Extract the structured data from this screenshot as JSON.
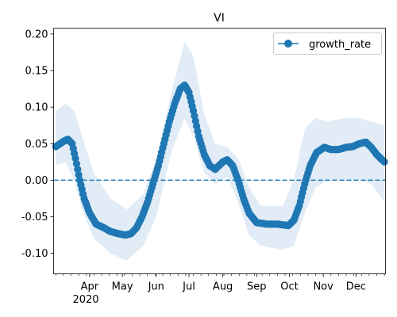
{
  "chart_data": {
    "type": "line",
    "title": "VI",
    "xlabel": "",
    "ylabel": "",
    "year_label": "2020",
    "x_range": [
      "2020-02-28",
      "2020-12-28"
    ],
    "ylim": [
      -0.128,
      0.208
    ],
    "y_ticks": [
      "-0.10",
      "-0.05",
      "0.00",
      "0.05",
      "0.10",
      "0.15",
      "0.20"
    ],
    "x_ticks": [
      {
        "label": "Apr",
        "date": "2020-04-01"
      },
      {
        "label": "May",
        "date": "2020-05-01"
      },
      {
        "label": "Jun",
        "date": "2020-06-01"
      },
      {
        "label": "Jul",
        "date": "2020-07-01"
      },
      {
        "label": "Aug",
        "date": "2020-08-01"
      },
      {
        "label": "Sep",
        "date": "2020-09-01"
      },
      {
        "label": "Oct",
        "date": "2020-10-01"
      },
      {
        "label": "Nov",
        "date": "2020-11-01"
      },
      {
        "label": "Dec",
        "date": "2020-12-01"
      }
    ],
    "reference_line": {
      "y": 0.0,
      "style": "dashed",
      "color": "#1f77b4"
    },
    "legend": {
      "placement": "upper-right",
      "entries": [
        "growth_rate"
      ]
    },
    "grid": false,
    "series": [
      {
        "name": "growth_rate",
        "color": "#1f77b4",
        "marker": "circle",
        "points": [
          [
            "2020-03-01",
            0.046
          ],
          [
            "2020-03-05",
            0.05
          ],
          [
            "2020-03-09",
            0.054
          ],
          [
            "2020-03-12",
            0.056
          ],
          [
            "2020-03-16",
            0.05
          ],
          [
            "2020-03-19",
            0.03
          ],
          [
            "2020-03-23",
            0.0
          ],
          [
            "2020-03-27",
            -0.025
          ],
          [
            "2020-04-01",
            -0.045
          ],
          [
            "2020-04-07",
            -0.06
          ],
          [
            "2020-04-14",
            -0.065
          ],
          [
            "2020-04-20",
            -0.07
          ],
          [
            "2020-04-27",
            -0.073
          ],
          [
            "2020-05-04",
            -0.075
          ],
          [
            "2020-05-09",
            -0.073
          ],
          [
            "2020-05-14",
            -0.065
          ],
          [
            "2020-05-19",
            -0.05
          ],
          [
            "2020-05-24",
            -0.03
          ],
          [
            "2020-05-29",
            -0.005
          ],
          [
            "2020-06-03",
            0.02
          ],
          [
            "2020-06-08",
            0.05
          ],
          [
            "2020-06-13",
            0.08
          ],
          [
            "2020-06-18",
            0.105
          ],
          [
            "2020-06-23",
            0.125
          ],
          [
            "2020-06-27",
            0.13
          ],
          [
            "2020-07-01",
            0.12
          ],
          [
            "2020-07-05",
            0.095
          ],
          [
            "2020-07-10",
            0.06
          ],
          [
            "2020-07-15",
            0.035
          ],
          [
            "2020-07-20",
            0.02
          ],
          [
            "2020-07-25",
            0.015
          ],
          [
            "2020-08-01",
            0.025
          ],
          [
            "2020-08-05",
            0.028
          ],
          [
            "2020-08-10",
            0.02
          ],
          [
            "2020-08-15",
            0.0
          ],
          [
            "2020-08-20",
            -0.025
          ],
          [
            "2020-08-25",
            -0.045
          ],
          [
            "2020-09-01",
            -0.058
          ],
          [
            "2020-09-10",
            -0.06
          ],
          [
            "2020-09-20",
            -0.06
          ],
          [
            "2020-09-30",
            -0.062
          ],
          [
            "2020-10-05",
            -0.055
          ],
          [
            "2020-10-10",
            -0.035
          ],
          [
            "2020-10-15",
            -0.005
          ],
          [
            "2020-10-20",
            0.02
          ],
          [
            "2020-10-26",
            0.038
          ],
          [
            "2020-11-02",
            0.045
          ],
          [
            "2020-11-08",
            0.042
          ],
          [
            "2020-11-15",
            0.042
          ],
          [
            "2020-11-22",
            0.045
          ],
          [
            "2020-11-28",
            0.046
          ],
          [
            "2020-12-04",
            0.05
          ],
          [
            "2020-12-10",
            0.052
          ],
          [
            "2020-12-15",
            0.045
          ],
          [
            "2020-12-20",
            0.035
          ],
          [
            "2020-12-27",
            0.025
          ]
        ]
      }
    ],
    "confidence_band": {
      "color": "#dce9f5",
      "upper": [
        [
          "2020-03-01",
          0.095
        ],
        [
          "2020-03-10",
          0.105
        ],
        [
          "2020-03-18",
          0.095
        ],
        [
          "2020-03-25",
          0.06
        ],
        [
          "2020-04-05",
          0.01
        ],
        [
          "2020-04-20",
          -0.025
        ],
        [
          "2020-05-05",
          -0.04
        ],
        [
          "2020-05-20",
          -0.02
        ],
        [
          "2020-06-01",
          0.03
        ],
        [
          "2020-06-15",
          0.12
        ],
        [
          "2020-06-27",
          0.19
        ],
        [
          "2020-07-05",
          0.17
        ],
        [
          "2020-07-15",
          0.09
        ],
        [
          "2020-07-25",
          0.05
        ],
        [
          "2020-08-05",
          0.045
        ],
        [
          "2020-08-15",
          0.03
        ],
        [
          "2020-08-25",
          -0.01
        ],
        [
          "2020-09-05",
          -0.035
        ],
        [
          "2020-09-25",
          -0.035
        ],
        [
          "2020-10-05",
          0.0
        ],
        [
          "2020-10-15",
          0.07
        ],
        [
          "2020-10-25",
          0.085
        ],
        [
          "2020-11-05",
          0.08
        ],
        [
          "2020-11-20",
          0.085
        ],
        [
          "2020-12-05",
          0.085
        ],
        [
          "2020-12-15",
          0.08
        ],
        [
          "2020-12-27",
          0.075
        ]
      ],
      "lower": [
        [
          "2020-03-01",
          0.02
        ],
        [
          "2020-03-10",
          0.025
        ],
        [
          "2020-03-18",
          0.0
        ],
        [
          "2020-03-25",
          -0.04
        ],
        [
          "2020-04-05",
          -0.08
        ],
        [
          "2020-04-20",
          -0.1
        ],
        [
          "2020-05-05",
          -0.11
        ],
        [
          "2020-05-20",
          -0.09
        ],
        [
          "2020-06-01",
          -0.05
        ],
        [
          "2020-06-15",
          0.04
        ],
        [
          "2020-06-27",
          0.085
        ],
        [
          "2020-07-05",
          0.06
        ],
        [
          "2020-07-15",
          0.01
        ],
        [
          "2020-07-25",
          -0.005
        ],
        [
          "2020-08-05",
          0.005
        ],
        [
          "2020-08-15",
          -0.03
        ],
        [
          "2020-08-25",
          -0.075
        ],
        [
          "2020-09-05",
          -0.09
        ],
        [
          "2020-09-25",
          -0.095
        ],
        [
          "2020-10-05",
          -0.09
        ],
        [
          "2020-10-15",
          -0.045
        ],
        [
          "2020-10-25",
          -0.01
        ],
        [
          "2020-11-05",
          0.0
        ],
        [
          "2020-11-20",
          0.0
        ],
        [
          "2020-12-05",
          0.0
        ],
        [
          "2020-12-15",
          -0.005
        ],
        [
          "2020-12-27",
          -0.03
        ]
      ]
    }
  }
}
